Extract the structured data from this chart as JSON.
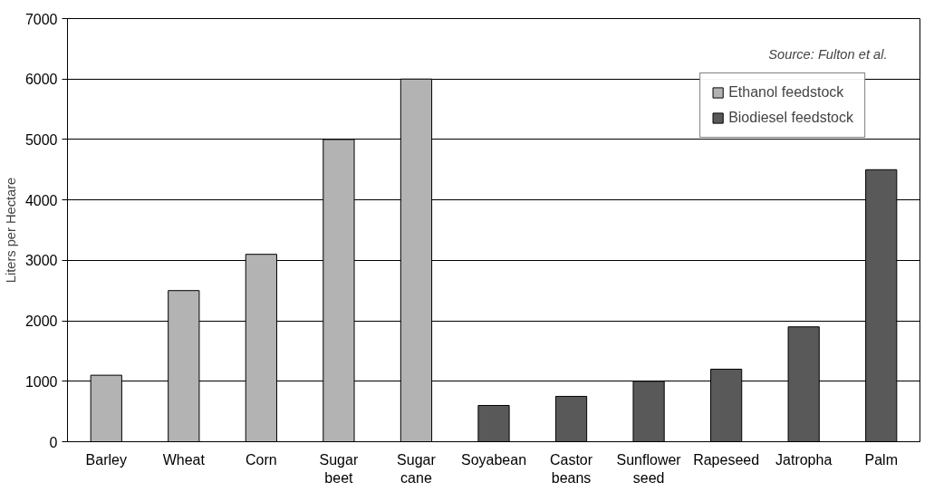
{
  "chart_data": {
    "type": "bar",
    "ylabel": "Liters per Hectare",
    "categories": [
      "Barley",
      "Wheat",
      "Corn",
      "Sugar\nbeet",
      "Sugar\ncane",
      "Soyabean",
      "Castor\nbeans",
      "Sunflower\nseed",
      "Rapeseed",
      "Jatropha",
      "Palm"
    ],
    "series": [
      {
        "name": "Ethanol feedstock",
        "color": "#b3b3b3",
        "values": [
          1100,
          2500,
          3100,
          5000,
          6000,
          null,
          null,
          null,
          null,
          null,
          null
        ]
      },
      {
        "name": "Biodiesel feedstock",
        "color": "#595959",
        "values": [
          null,
          null,
          null,
          null,
          null,
          600,
          750,
          1000,
          1200,
          1900,
          4500
        ]
      }
    ],
    "ylim": [
      0,
      7000
    ],
    "yticks": [
      0,
      1000,
      2000,
      3000,
      4000,
      5000,
      6000,
      7000
    ],
    "grid": "y",
    "legend": "top right",
    "annotations": [
      "Source: Fulton et al."
    ]
  }
}
